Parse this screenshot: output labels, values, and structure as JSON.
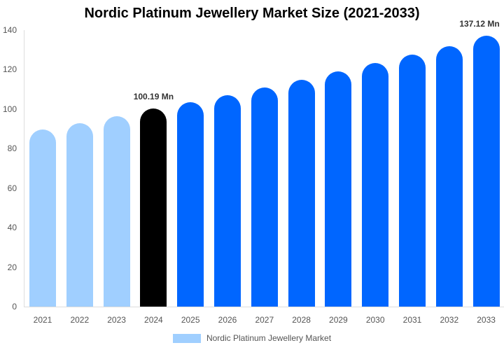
{
  "chart_data": {
    "type": "bar",
    "title": "Nordic Platinum Jewellery Market Size (2021-2033)",
    "xlabel": "",
    "ylabel": "",
    "ylim": [
      0,
      140
    ],
    "yticks": [
      0,
      20,
      40,
      60,
      80,
      100,
      120,
      140
    ],
    "grid": false,
    "legend_position": "bottom",
    "categories": [
      "2021",
      "2022",
      "2023",
      "2024",
      "2025",
      "2026",
      "2027",
      "2028",
      "2029",
      "2030",
      "2031",
      "2032",
      "2033"
    ],
    "series": [
      {
        "name": "Nordic Platinum Jewellery Market",
        "values": [
          89.7,
          92.9,
          96.5,
          100.19,
          103.5,
          107.0,
          111.0,
          115.0,
          119.0,
          123.4,
          127.6,
          132.0,
          137.12
        ]
      }
    ],
    "bar_colors": [
      "#a0cfff",
      "#a0cfff",
      "#a0cfff",
      "#000000",
      "#0066ff",
      "#0066ff",
      "#0066ff",
      "#0066ff",
      "#0066ff",
      "#0066ff",
      "#0066ff",
      "#0066ff",
      "#0066ff"
    ],
    "annotations": [
      {
        "category": "2024",
        "text": "100.19 Mn"
      },
      {
        "category": "2033",
        "text": "137.12 Mn"
      }
    ]
  },
  "legend": {
    "label": "Nordic Platinum Jewellery Market",
    "color": "#a0cfff"
  }
}
